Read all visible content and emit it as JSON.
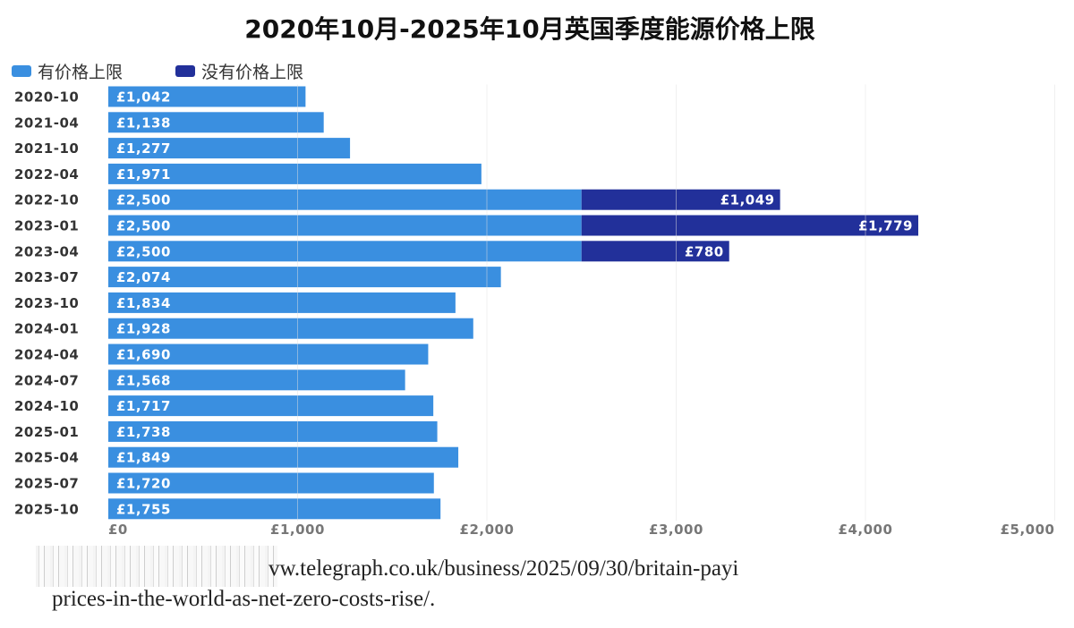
{
  "chart_data": {
    "type": "bar",
    "orientation": "horizontal",
    "stacked": true,
    "title": "2020年10月-2025年10月英国季度能源价格上限",
    "legend_position": "top-left",
    "grid": true,
    "categories": [
      "2020-10",
      "2021-04",
      "2021-10",
      "2022-04",
      "2022-10",
      "2023-01",
      "2023-04",
      "2023-07",
      "2023-10",
      "2024-01",
      "2024-04",
      "2024-07",
      "2024-10",
      "2025-01",
      "2025-04",
      "2025-07",
      "2025-10"
    ],
    "series": [
      {
        "name": "有价格上限",
        "color": "#3a8fe0",
        "values": [
          1042,
          1138,
          1277,
          1971,
          2500,
          2500,
          2500,
          2074,
          1834,
          1928,
          1690,
          1568,
          1717,
          1738,
          1849,
          1720,
          1755
        ],
        "labels": [
          "£1,042",
          "£1,138",
          "£1,277",
          "£1,971",
          "£2,500",
          "£2,500",
          "£2,500",
          "£2,074",
          "£1,834",
          "£1,928",
          "£1,690",
          "£1,568",
          "£1,717",
          "£1,738",
          "£1,849",
          "£1,720",
          "£1,755"
        ]
      },
      {
        "name": "没有价格上限",
        "color": "#22309a",
        "values": [
          0,
          0,
          0,
          0,
          1049,
          1779,
          780,
          0,
          0,
          0,
          0,
          0,
          0,
          0,
          0,
          0,
          0
        ],
        "labels": [
          "",
          "",
          "",
          "",
          "£1,049",
          "£1,779",
          "£780",
          "",
          "",
          "",
          "",
          "",
          "",
          "",
          "",
          "",
          ""
        ]
      }
    ],
    "xlim": [
      0,
      5000
    ],
    "xticks": [
      0,
      1000,
      2000,
      3000,
      4000,
      5000
    ],
    "xtick_labels": [
      "£0",
      "£1,000",
      "£2,000",
      "£3,000",
      "£4,000",
      "£5,000"
    ]
  },
  "source": {
    "line1": "vw.telegraph.co.uk/business/2025/09/30/britain-payi",
    "line2": "prices-in-the-world-as-net-zero-costs-rise/."
  }
}
